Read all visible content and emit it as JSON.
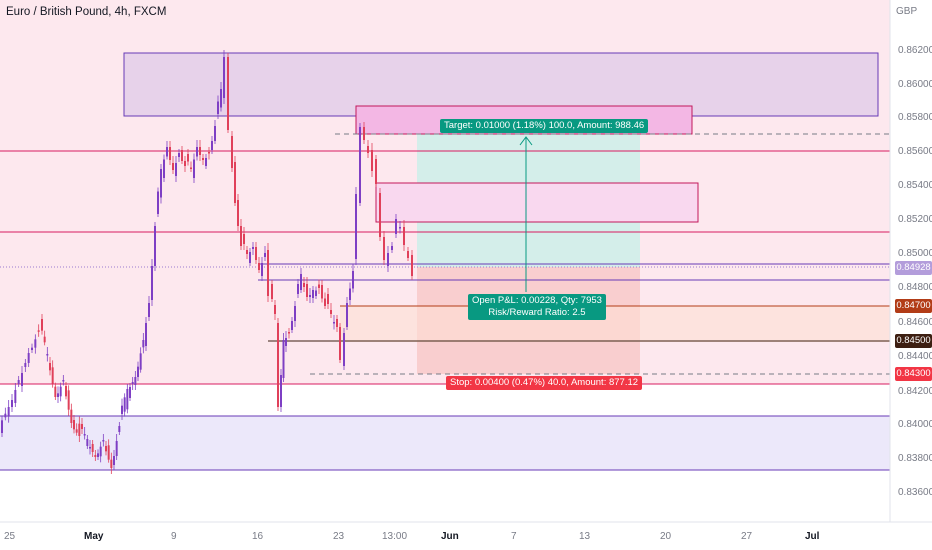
{
  "header": {
    "symbol_title": "Euro / British Pound, 4h, FXCM",
    "currency": "GBP"
  },
  "axis": {
    "price_ticks": [
      "0.86200",
      "0.86000",
      "0.85800",
      "0.85600",
      "0.85400",
      "0.85200",
      "0.85000",
      "0.84800",
      "0.84600",
      "0.84400",
      "0.84200",
      "0.84000",
      "0.83800",
      "0.83600"
    ],
    "date_ticks": [
      "25",
      "May",
      "9",
      "16",
      "23",
      "13:00",
      "Jun",
      "7",
      "13",
      "20",
      "27",
      "Jul"
    ]
  },
  "price_labels": {
    "current": "0.84928",
    "level_1": "0.84700",
    "level_2": "0.84500",
    "stop": "0.84300"
  },
  "position_tool": {
    "target_text": "Target: 0.01000 (1.18%) 100.0, Amount: 988.46",
    "open_pl_text": "Open P&L: 0.00228, Qty: 7953",
    "risk_reward_text": "Risk/Reward Ratio: 2.5",
    "stop_text": "Stop: 0.00400 (0.47%) 40.0, Amount: 877.12"
  },
  "colors": {
    "up_candle": "#7e3fc4",
    "down_candle": "#e0405a",
    "profit_zone": "#b2dfdb",
    "loss_zone": "#f7c1c1",
    "target_label": "#089981",
    "stop_label": "#f23645",
    "level_line_red": "#d81b60",
    "level_line_purple": "#673ab7",
    "pink_bg": "#fde3ea",
    "purple_bg": "#ece6fa"
  }
}
